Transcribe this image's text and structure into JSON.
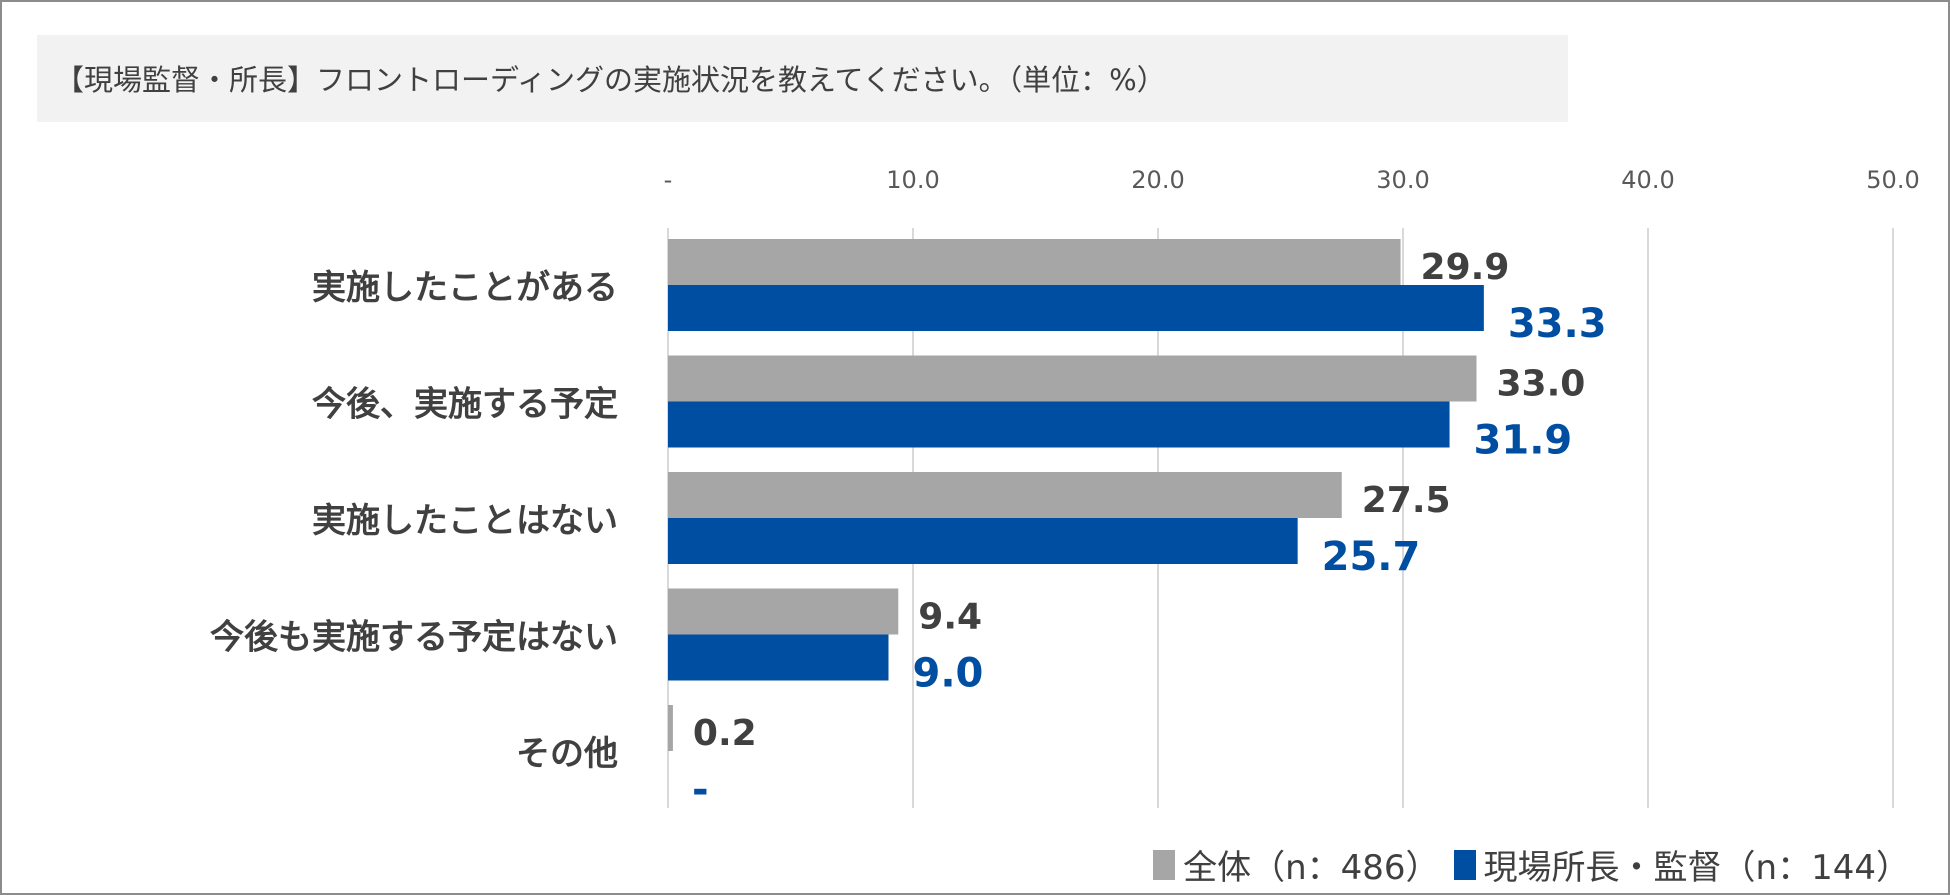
{
  "chart_data": {
    "type": "bar",
    "orientation": "horizontal",
    "title": "【現場監督・所長】フロントローディングの実施状況を教えてください。（単位：%）",
    "categories": [
      "実施したことがある",
      "今後、実施する予定",
      "実施したことはない",
      "今後も実施する予定はない",
      "その他"
    ],
    "series": [
      {
        "name": "全体（n：486）",
        "color": "#a6a6a6",
        "label_color": "#404040",
        "values": [
          29.9,
          33.0,
          27.5,
          9.4,
          0.2
        ],
        "labels": [
          "29.9",
          "33.0",
          "27.5",
          "9.4",
          "0.2"
        ]
      },
      {
        "name": "現場所長・監督（n：144）",
        "color": "#004ea2",
        "label_color": "#004ea2",
        "values": [
          33.3,
          31.9,
          25.7,
          9.0,
          0
        ],
        "labels": [
          "33.3",
          "31.9",
          "25.7",
          "9.0",
          "-"
        ]
      }
    ],
    "xlim": [
      0,
      50
    ],
    "xticks": [
      "-",
      "10.0",
      "20.0",
      "30.0",
      "40.0",
      "50.0"
    ],
    "grid": true,
    "legend_position": "bottom-right"
  }
}
